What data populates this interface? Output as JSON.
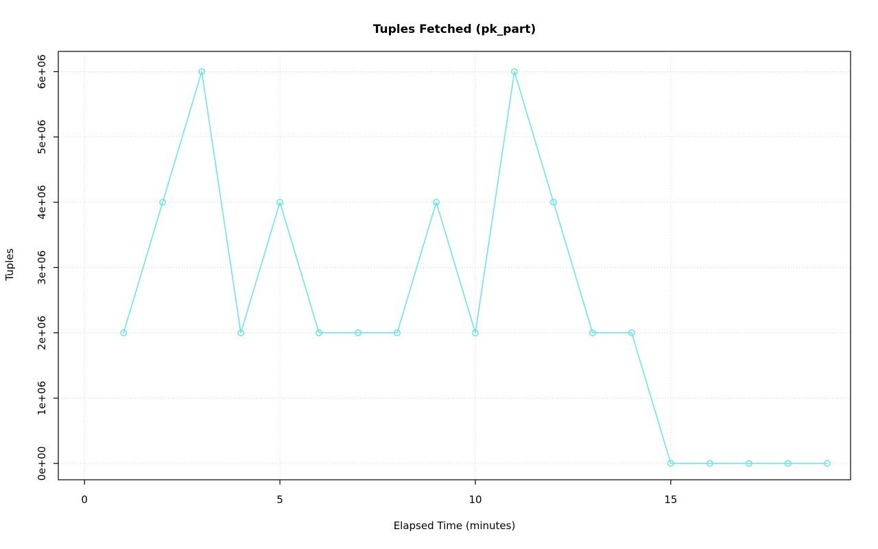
{
  "chart_data": {
    "type": "line",
    "title": "Tuples Fetched (pk_part)",
    "xlabel": "Elapsed Time (minutes)",
    "ylabel": "Tuples",
    "x": [
      1,
      2,
      3,
      4,
      5,
      6,
      7,
      8,
      9,
      10,
      11,
      12,
      13,
      14,
      15,
      16,
      17,
      18,
      19
    ],
    "values": [
      2000000,
      4000000,
      6000000,
      2000000,
      4000000,
      2000000,
      2000000,
      2000000,
      4000000,
      2000000,
      6000000,
      4000000,
      2000000,
      2000000,
      0,
      0,
      0,
      0,
      0
    ],
    "x_ticks": [
      0,
      5,
      10,
      15
    ],
    "x_tick_labels": [
      "0",
      "5",
      "10",
      "15"
    ],
    "y_ticks": [
      0,
      1000000,
      2000000,
      3000000,
      4000000,
      5000000,
      6000000
    ],
    "y_tick_labels": [
      "0e+00",
      "1e+06",
      "2e+06",
      "3e+06",
      "4e+06",
      "5e+06",
      "6e+06"
    ],
    "xlim": [
      -0.67,
      19.6
    ],
    "ylim": [
      -250000,
      6310000
    ],
    "grid": true,
    "legend": "none",
    "line_color": "#5fe6ec",
    "grid_color": "#d6d6d6",
    "axis_color": "#000000",
    "marker": "open-circle"
  }
}
